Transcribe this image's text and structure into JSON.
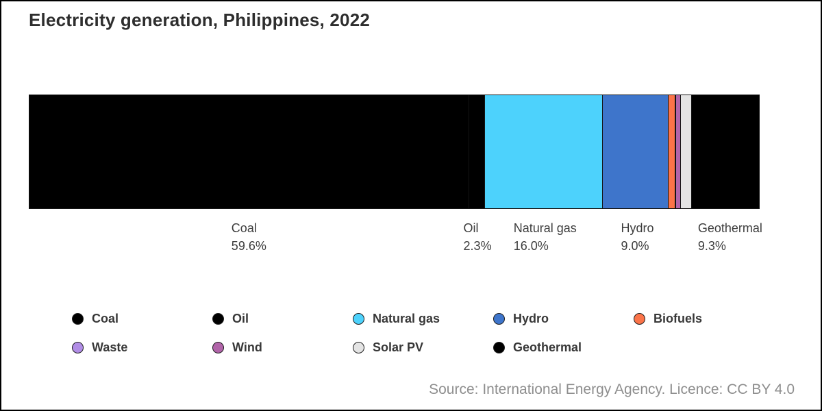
{
  "title": "Electricity generation, Philippines, 2022",
  "source_note": "Source: International Energy Agency. Licence: CC BY 4.0",
  "chart_data": {
    "type": "bar",
    "variant": "single-horizontal-stacked",
    "title": "Electricity generation, Philippines, 2022",
    "unit": "% share of electricity generation",
    "xlim": [
      0,
      100
    ],
    "legend_position": "bottom",
    "grid": false,
    "segments": [
      {
        "name": "Coal",
        "value": 59.6,
        "color": "#000000",
        "pct_label": "59.6%",
        "labeled": true
      },
      {
        "name": "Oil",
        "value": 2.3,
        "color": "#000000",
        "pct_label": "2.3%",
        "labeled": true
      },
      {
        "name": "Natural gas",
        "value": 16.0,
        "color": "#4dd2fc",
        "pct_label": "16.0%",
        "labeled": true
      },
      {
        "name": "Hydro",
        "value": 9.0,
        "color": "#3e75cb",
        "pct_label": "9.0%",
        "labeled": true
      },
      {
        "name": "Biofuels",
        "value": 1.0,
        "color": "#fb7449",
        "labeled": false
      },
      {
        "name": "Waste",
        "value": 0.1,
        "color": "#b18de6",
        "labeled": false
      },
      {
        "name": "Wind",
        "value": 0.8,
        "color": "#b164a9",
        "labeled": false
      },
      {
        "name": "Solar PV",
        "value": 1.5,
        "color": "#e4e4e4",
        "labeled": false
      },
      {
        "name": "Geothermal",
        "value": 9.3,
        "color": "#000000",
        "pct_label": "9.3%",
        "labeled": true
      }
    ]
  },
  "legend": {
    "columns": 5,
    "items": [
      {
        "label": "Coal",
        "color": "#000000"
      },
      {
        "label": "Oil",
        "color": "#000000"
      },
      {
        "label": "Natural gas",
        "color": "#4dd2fc"
      },
      {
        "label": "Hydro",
        "color": "#3e75cb"
      },
      {
        "label": "Biofuels",
        "color": "#fb7449"
      },
      {
        "label": "Waste",
        "color": "#b18de6"
      },
      {
        "label": "Wind",
        "color": "#b164a9"
      },
      {
        "label": "Solar PV",
        "color": "#e4e4e4"
      },
      {
        "label": "Geothermal",
        "color": "#000000"
      }
    ]
  }
}
